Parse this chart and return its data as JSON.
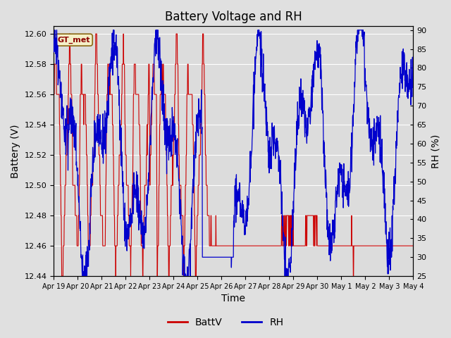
{
  "title": "Battery Voltage and RH",
  "xlabel": "Time",
  "ylabel_left": "Battery (V)",
  "ylabel_right": "RH (%)",
  "xlim_labels": [
    "Apr 19",
    "Apr 20",
    "Apr 21",
    "Apr 22",
    "Apr 23",
    "Apr 24",
    "Apr 25",
    "Apr 26",
    "Apr 27",
    "Apr 28",
    "Apr 29",
    "Apr 30",
    "May 1",
    "May 2",
    "May 3",
    "May 4"
  ],
  "ylim_left": [
    12.44,
    12.605
  ],
  "ylim_right": [
    25,
    91
  ],
  "yticks_left": [
    12.44,
    12.46,
    12.48,
    12.5,
    12.52,
    12.54,
    12.56,
    12.58,
    12.6
  ],
  "yticks_right": [
    25,
    30,
    35,
    40,
    45,
    50,
    55,
    60,
    65,
    70,
    75,
    80,
    85,
    90
  ],
  "batt_color": "#cc0000",
  "rh_color": "#0000cc",
  "legend_label_batt": "BattV",
  "legend_label_rh": "RH",
  "station_label": "GT_met",
  "fig_bg_color": "#e0e0e0",
  "plot_bg_color": "#dcdcdc",
  "title_fontsize": 12,
  "label_fontsize": 10,
  "tick_fontsize": 8,
  "legend_fontsize": 10
}
